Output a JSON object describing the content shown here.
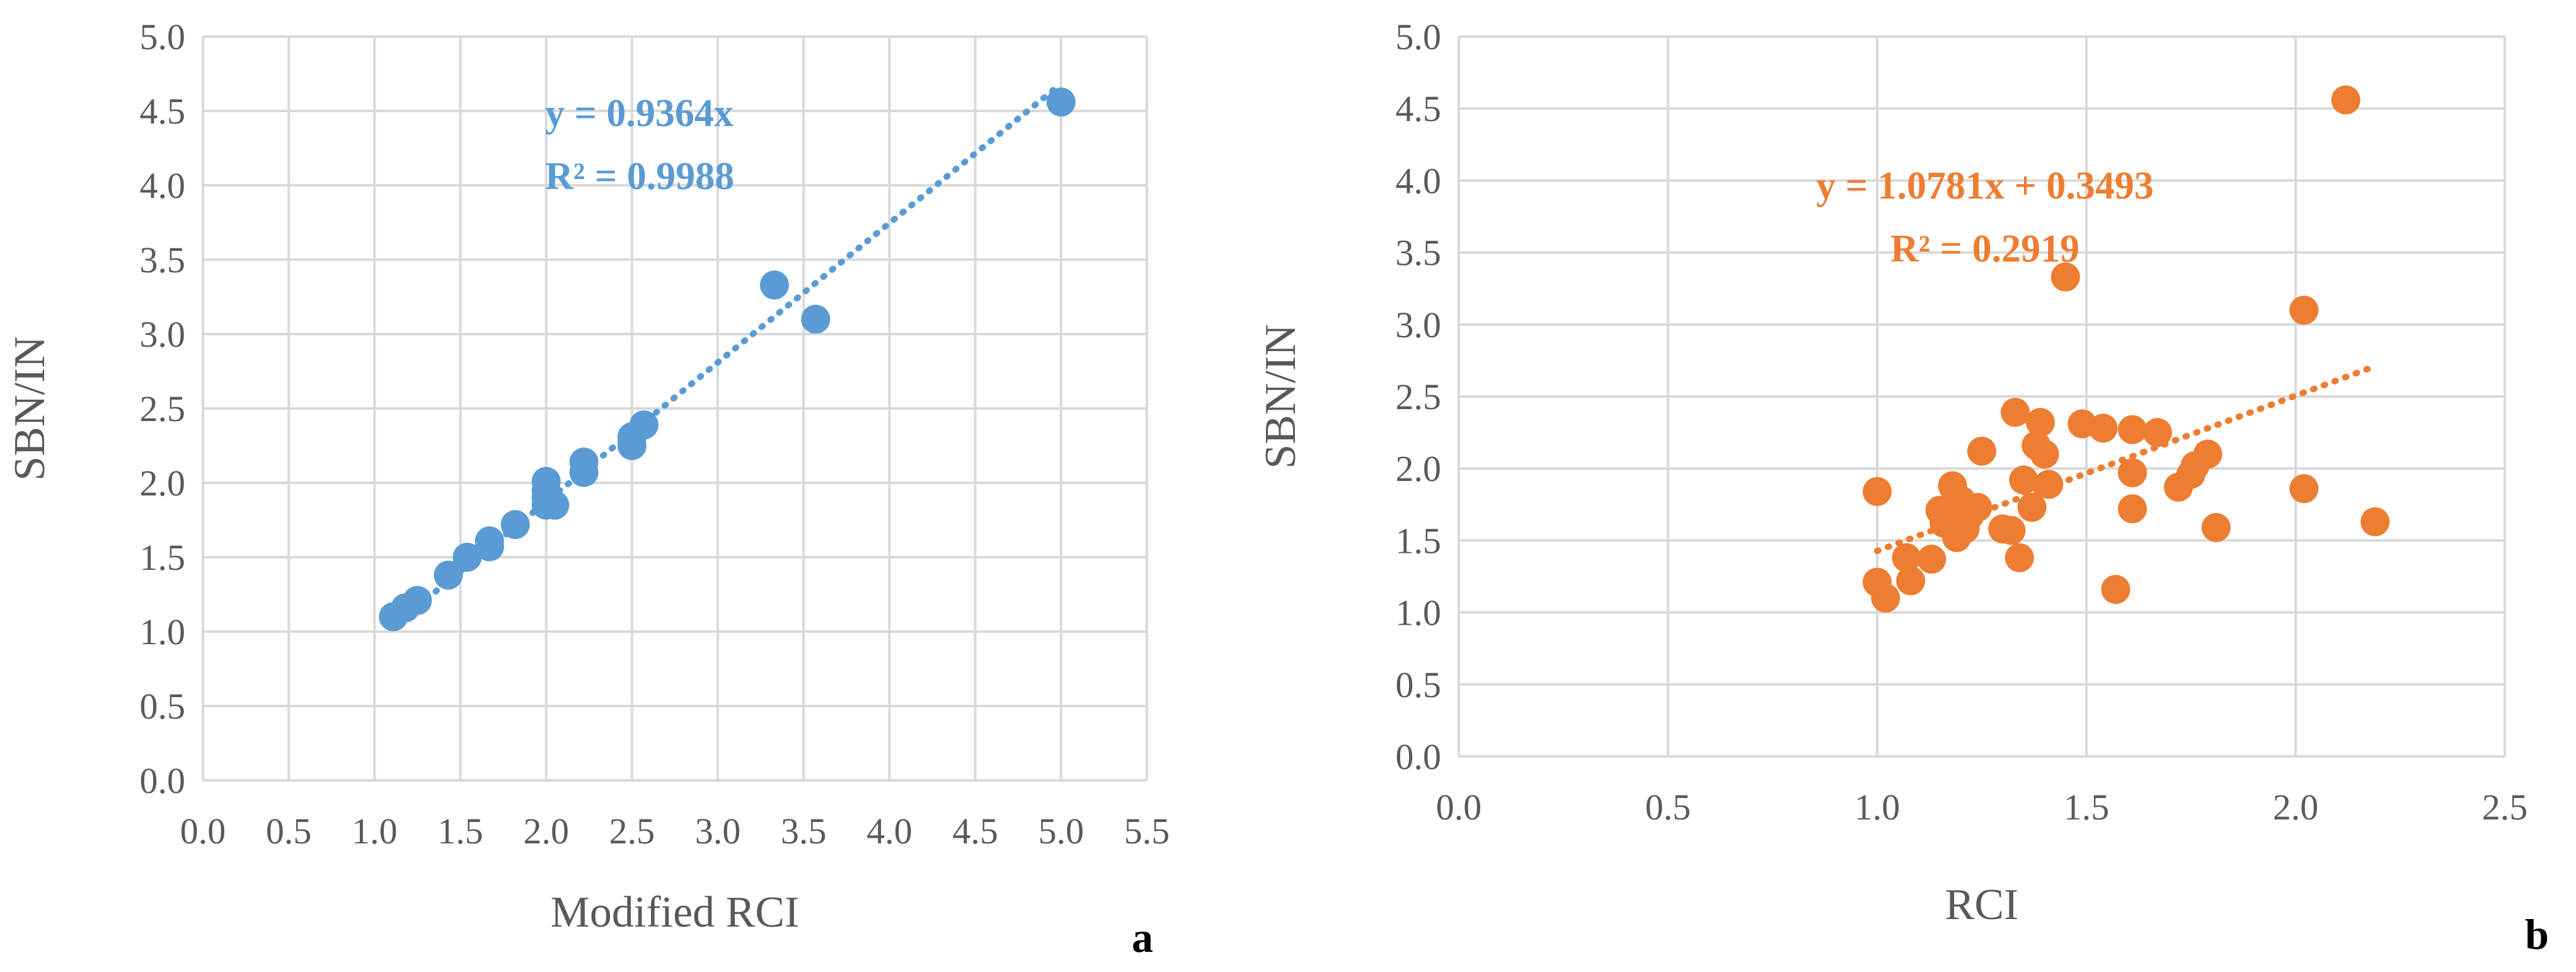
{
  "chart_data": [
    {
      "type": "scatter",
      "panel": "a",
      "xlabel": "Modified RCI",
      "ylabel": "SBN/IN",
      "xlim": [
        0,
        5.5
      ],
      "ylim": [
        0,
        5
      ],
      "x_ticks": [
        "0.0",
        "0.5",
        "1.0",
        "1.5",
        "2.0",
        "2.5",
        "3.0",
        "3.5",
        "4.0",
        "4.5",
        "5.0",
        "5.5"
      ],
      "y_ticks": [
        "0.0",
        "0.5",
        "1.0",
        "1.5",
        "2.0",
        "2.5",
        "3.0",
        "3.5",
        "4.0",
        "4.5",
        "5.0"
      ],
      "grid": true,
      "color": "#5b9bd5",
      "trendline": {
        "slope": 0.9364,
        "intercept": 0,
        "x_range": [
          1.1,
          5.0
        ]
      },
      "annotations": [
        "y = 0.9364x",
        "R² = 0.9988"
      ],
      "series": [
        {
          "points": [
            [
              1.11,
              1.1
            ],
            [
              1.18,
              1.16
            ],
            [
              1.25,
              1.21
            ],
            [
              1.43,
              1.38
            ],
            [
              1.54,
              1.5
            ],
            [
              1.67,
              1.57
            ],
            [
              1.67,
              1.61
            ],
            [
              1.82,
              1.72
            ],
            [
              2.0,
              1.85
            ],
            [
              2.0,
              1.9
            ],
            [
              2.0,
              1.95
            ],
            [
              2.0,
              2.01
            ],
            [
              2.05,
              1.85
            ],
            [
              2.22,
              2.07
            ],
            [
              2.22,
              2.14
            ],
            [
              2.5,
              2.25
            ],
            [
              2.5,
              2.31
            ],
            [
              2.57,
              2.39
            ],
            [
              3.33,
              3.33
            ],
            [
              3.57,
              3.1
            ],
            [
              5.0,
              4.56
            ]
          ]
        }
      ]
    },
    {
      "type": "scatter",
      "panel": "b",
      "xlabel": "RCI",
      "ylabel": "SBN/IN",
      "xlim": [
        0,
        2.5
      ],
      "ylim": [
        0,
        5
      ],
      "x_ticks": [
        "0.0",
        "0.5",
        "1.0",
        "1.5",
        "2.0",
        "2.5"
      ],
      "y_ticks": [
        "0.0",
        "0.5",
        "1.0",
        "1.5",
        "2.0",
        "2.5",
        "3.0",
        "3.5",
        "4.0",
        "4.5",
        "5.0"
      ],
      "grid": true,
      "color": "#ed7d31",
      "trendline": {
        "slope": 1.0781,
        "intercept": 0.3493,
        "x_range": [
          1.0,
          2.19
        ]
      },
      "annotations": [
        "y = 1.0781x + 0.3493",
        "R² = 0.2919"
      ],
      "series": [
        {
          "points": [
            [
              1.0,
              1.84
            ],
            [
              1.0,
              1.21
            ],
            [
              1.02,
              1.1
            ],
            [
              1.07,
              1.38
            ],
            [
              1.08,
              1.22
            ],
            [
              1.13,
              1.37
            ],
            [
              1.15,
              1.71
            ],
            [
              1.16,
              1.62
            ],
            [
              1.18,
              1.88
            ],
            [
              1.19,
              1.52
            ],
            [
              1.2,
              1.78
            ],
            [
              1.21,
              1.58
            ],
            [
              1.22,
              1.67
            ],
            [
              1.24,
              1.73
            ],
            [
              1.25,
              2.12
            ],
            [
              1.3,
              1.58
            ],
            [
              1.32,
              1.57
            ],
            [
              1.33,
              2.39
            ],
            [
              1.34,
              1.38
            ],
            [
              1.35,
              1.92
            ],
            [
              1.37,
              1.73
            ],
            [
              1.38,
              2.16
            ],
            [
              1.39,
              2.32
            ],
            [
              1.4,
              2.1
            ],
            [
              1.41,
              1.89
            ],
            [
              1.45,
              3.33
            ],
            [
              1.49,
              2.31
            ],
            [
              1.54,
              2.28
            ],
            [
              1.57,
              1.16
            ],
            [
              1.61,
              2.27
            ],
            [
              1.61,
              1.97
            ],
            [
              1.61,
              1.72
            ],
            [
              1.67,
              2.25
            ],
            [
              1.72,
              1.87
            ],
            [
              1.75,
              1.96
            ],
            [
              1.76,
              2.02
            ],
            [
              1.79,
              2.1
            ],
            [
              1.81,
              1.59
            ],
            [
              2.02,
              3.1
            ],
            [
              2.02,
              1.86
            ],
            [
              2.12,
              4.56
            ],
            [
              2.19,
              1.63
            ]
          ]
        }
      ]
    }
  ]
}
